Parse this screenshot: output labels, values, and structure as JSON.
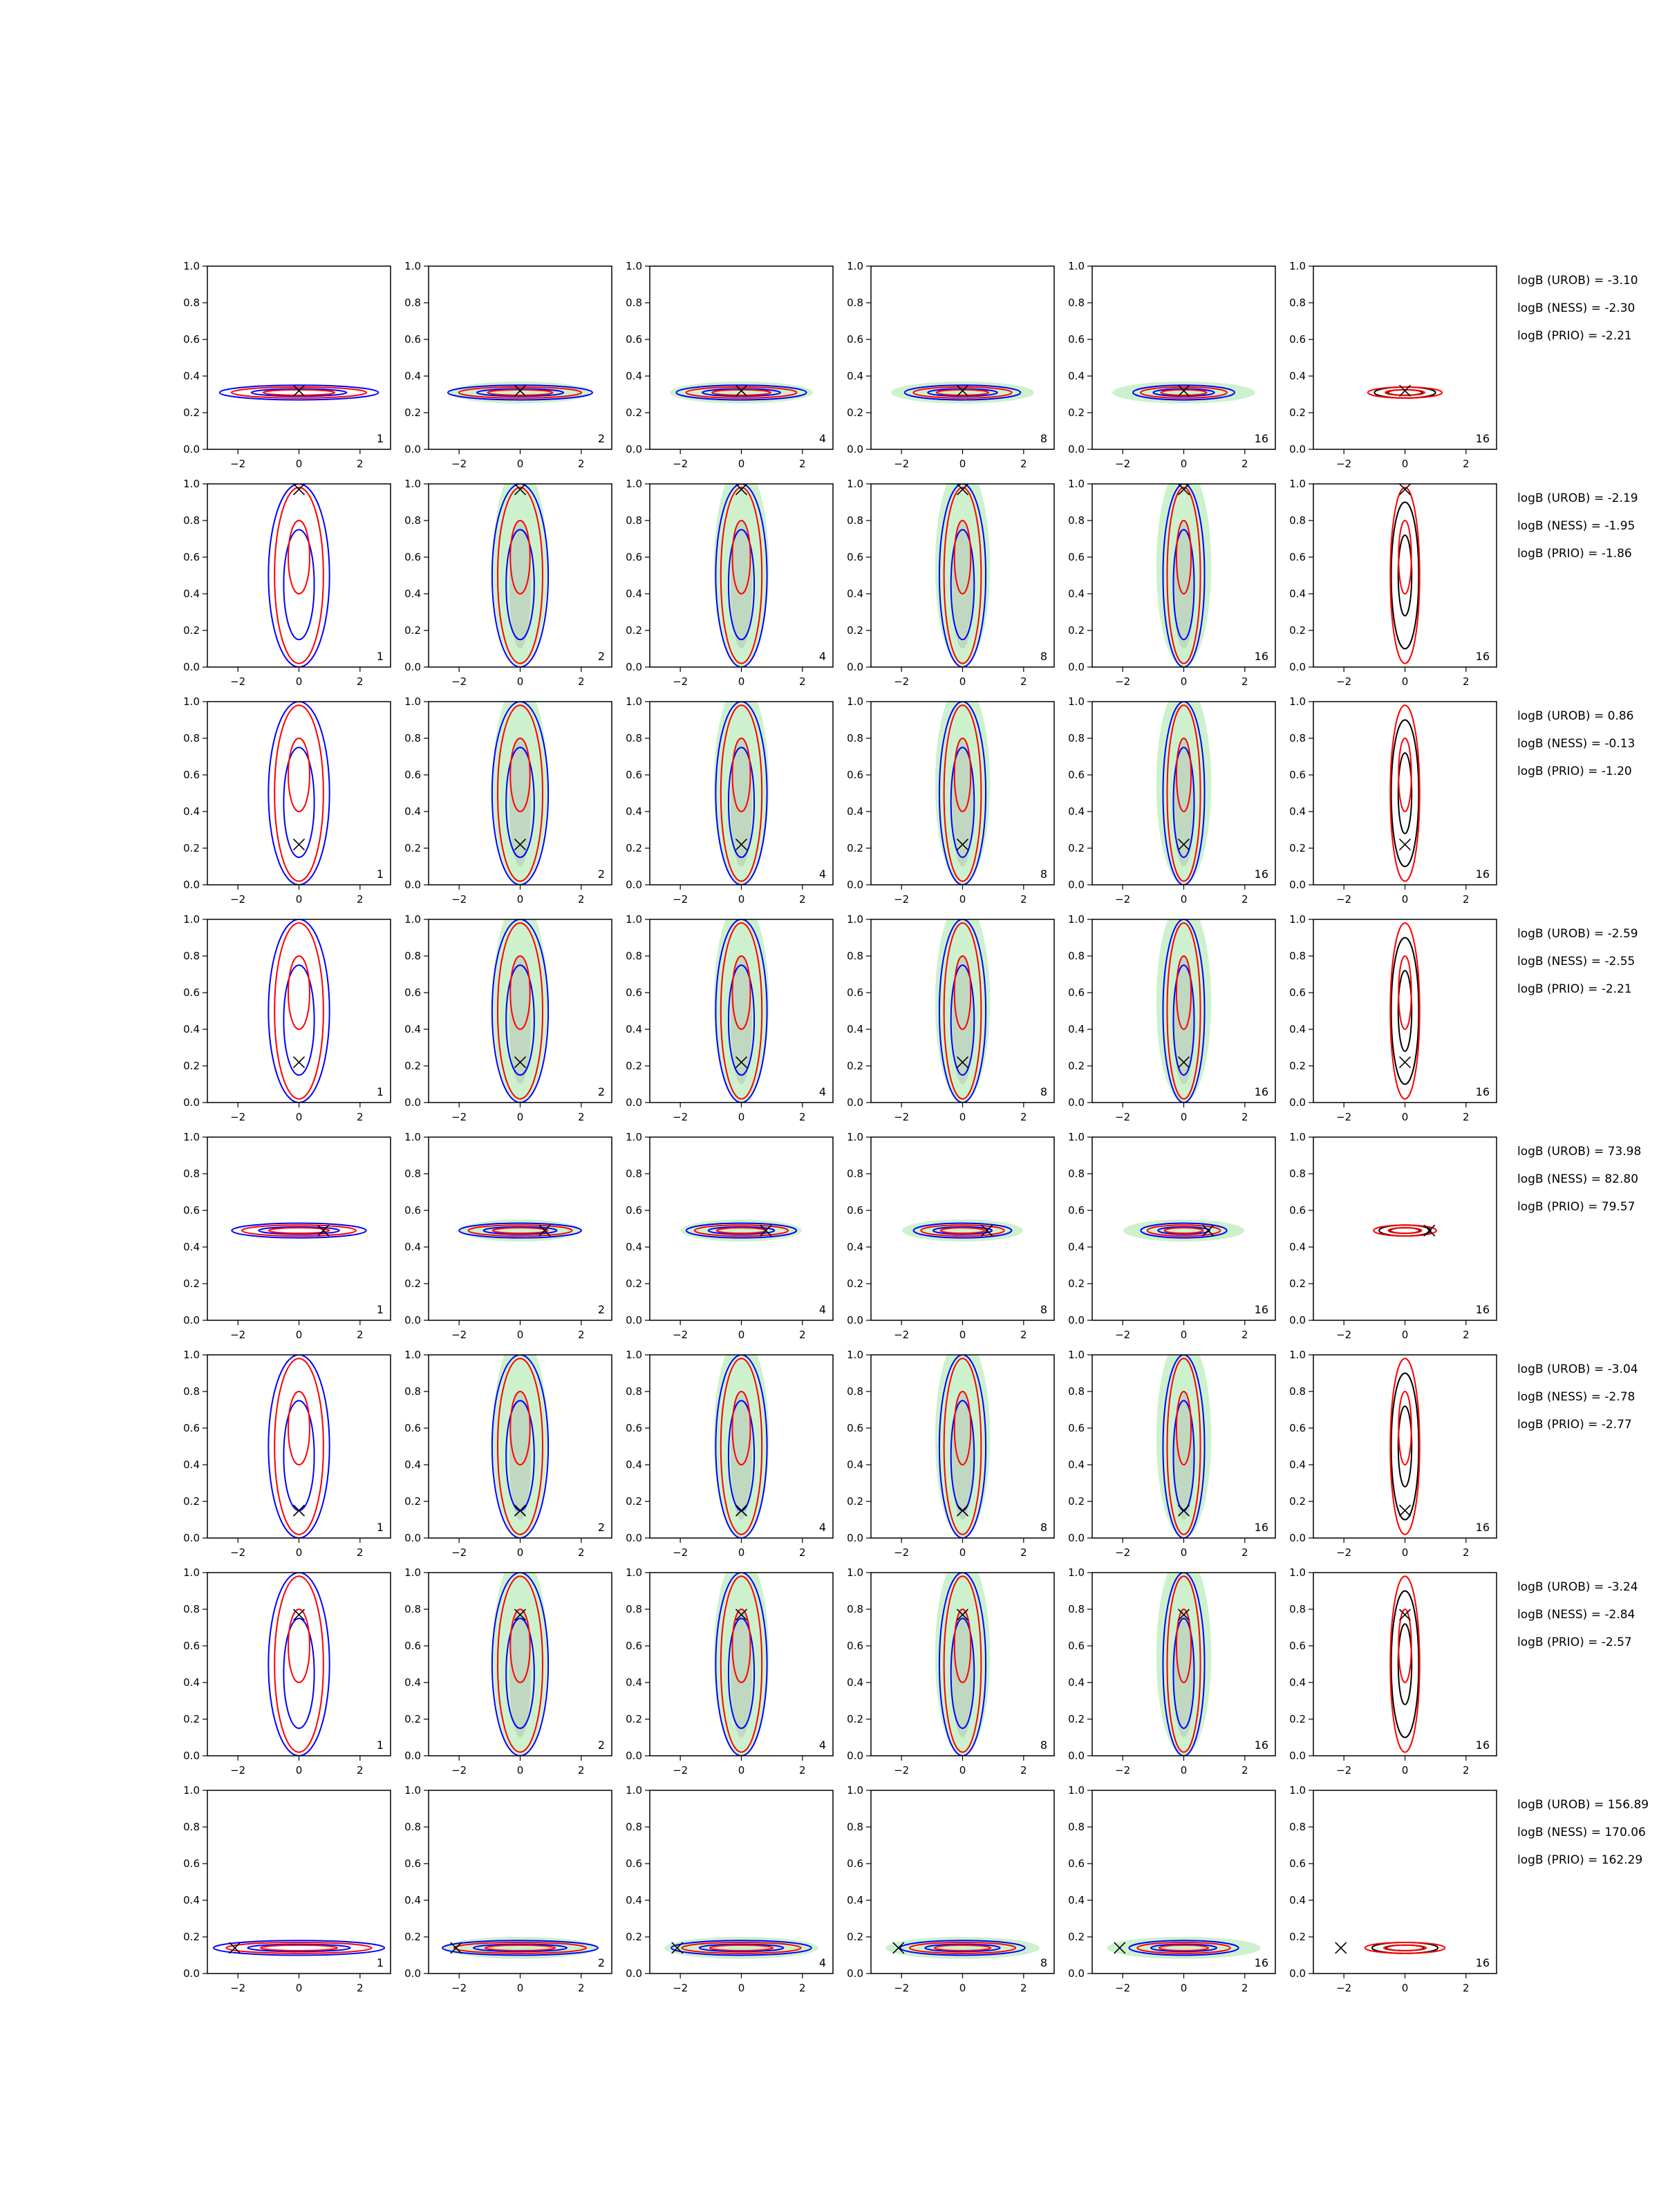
{
  "chart_data": {
    "type": "contour-grid",
    "rows": 8,
    "columns": 6,
    "xlim": [
      -3,
      3
    ],
    "ylim": [
      0,
      1
    ],
    "x_ticks": [
      -2,
      0,
      2
    ],
    "y_ticks": [
      0.0,
      0.2,
      0.4,
      0.6,
      0.8,
      1.0
    ],
    "x_tick_labels": [
      "−2",
      "0",
      "2"
    ],
    "y_tick_labels": [
      "0.0",
      "0.2",
      "0.4",
      "0.6",
      "0.8",
      "1.0"
    ],
    "column_labels": [
      "1",
      "2",
      "4",
      "8",
      "16",
      "16"
    ],
    "colors": {
      "urob": "#0000ff",
      "ness": "#ff0000",
      "prio": "#000000",
      "prior_fill": "#90e090",
      "inner_fill": "#a8a8a8"
    },
    "row_data": [
      {
        "truth": [
          0.0,
          0.32
        ],
        "shape": "flat",
        "center": 0.31,
        "width": 2.6,
        "mode": "tight",
        "logB": [
          "logB (UROB) = -3.10",
          "logB (NESS) = -2.30",
          "logB (PRIO) = -2.21"
        ]
      },
      {
        "truth": [
          0.0,
          0.97
        ],
        "shape": "vertical",
        "center": 0.65,
        "width": 0.6,
        "mode": "wide",
        "logB": [
          "logB (UROB) = -2.19",
          "logB (NESS) = -1.95",
          "logB (PRIO) = -1.86"
        ]
      },
      {
        "truth": [
          0.0,
          0.22
        ],
        "shape": "vertical",
        "center": 0.5,
        "width": 0.6,
        "mode": "wide",
        "logB": [
          "logB (UROB) = 0.86",
          "logB (NESS) = -0.13",
          "logB (PRIO) = -1.20"
        ]
      },
      {
        "truth": [
          0.0,
          0.22
        ],
        "shape": "vertical",
        "center": 0.55,
        "width": 0.6,
        "mode": "wide",
        "logB": [
          "logB (UROB) = -2.59",
          "logB (NESS) = -2.55",
          "logB (PRIO) = -2.21"
        ]
      },
      {
        "truth": [
          0.8,
          0.49
        ],
        "shape": "flat",
        "center": 0.49,
        "width": 2.2,
        "mode": "tight",
        "logB": [
          "logB (UROB) = 73.98",
          "logB (NESS) = 82.80",
          "logB (PRIO) = 79.57"
        ]
      },
      {
        "truth": [
          0.0,
          0.15
        ],
        "shape": "vertical",
        "center": 0.5,
        "width": 0.6,
        "mode": "wide",
        "logB": [
          "logB (UROB) = -3.04",
          "logB (NESS) = -2.78",
          "logB (PRIO) = -2.77"
        ]
      },
      {
        "truth": [
          0.0,
          0.77
        ],
        "shape": "vertical",
        "center": 0.5,
        "width": 0.6,
        "mode": "wide",
        "logB": [
          "logB (UROB) = -3.24",
          "logB (NESS) = -2.84",
          "logB (PRIO) = -2.57"
        ]
      },
      {
        "truth": [
          -2.1,
          0.14
        ],
        "shape": "flat",
        "center": 0.14,
        "width": 2.8,
        "mode": "tight",
        "logB": [
          "logB (UROB) = 156.89",
          "logB (NESS) = 170.06",
          "logB (PRIO) = 162.29"
        ]
      }
    ]
  }
}
